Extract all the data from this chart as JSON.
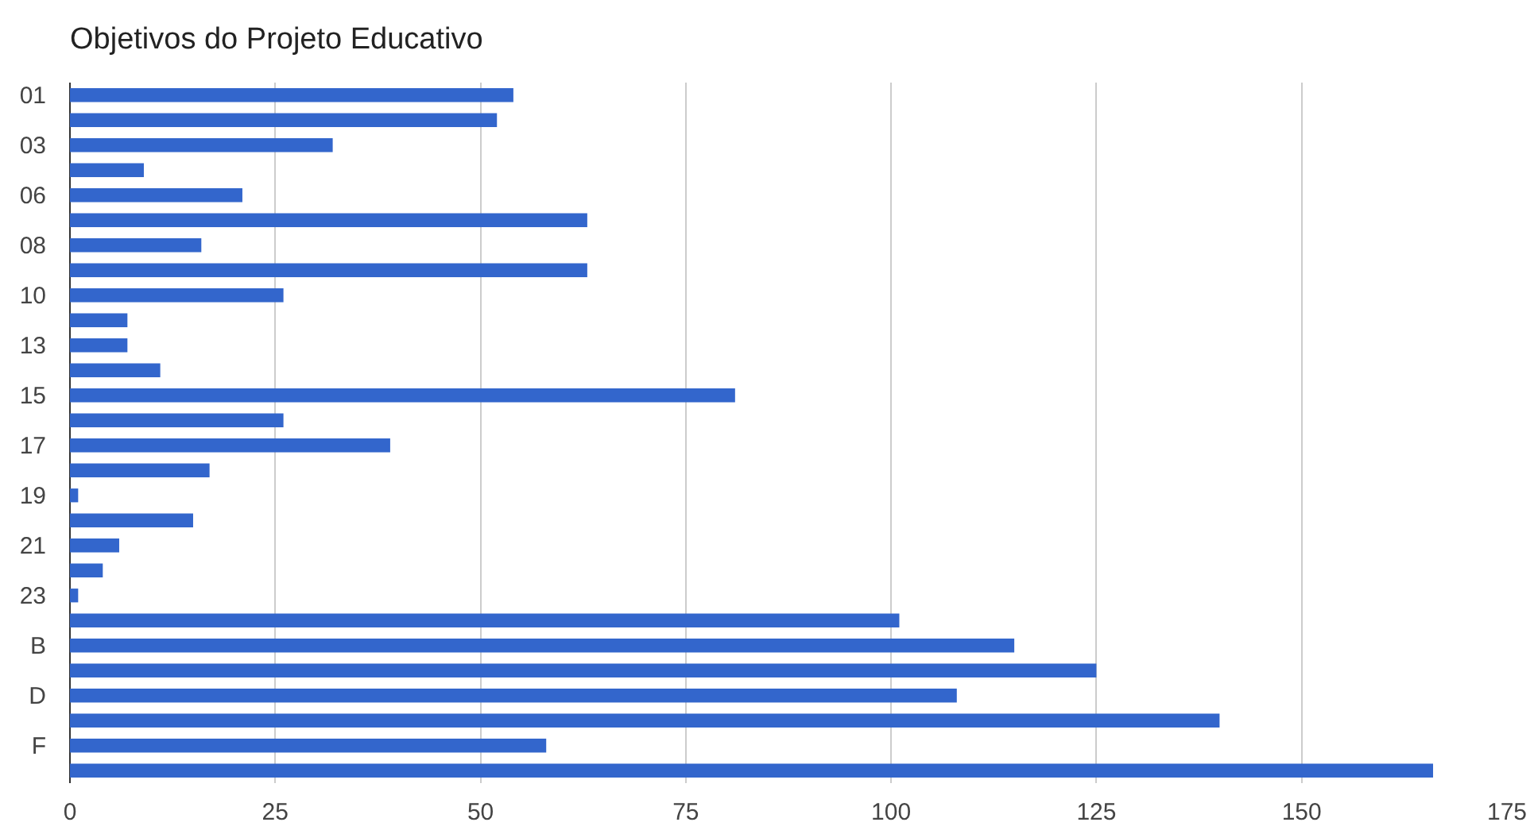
{
  "chart_data": {
    "type": "bar",
    "orientation": "horizontal",
    "title": "Objetivos do Projeto Educativo",
    "categories": [
      "01",
      null,
      "03",
      null,
      "06",
      null,
      "08",
      null,
      "10",
      null,
      "13",
      null,
      "15",
      null,
      "17",
      null,
      "19",
      null,
      "21",
      null,
      "23",
      null,
      "B",
      null,
      "D",
      null,
      "F",
      null
    ],
    "values": [
      54,
      52,
      32,
      9,
      21,
      63,
      16,
      63,
      26,
      7,
      7,
      11,
      81,
      26,
      39,
      17,
      1,
      15,
      6,
      4,
      1,
      101,
      115,
      125,
      108,
      140,
      58,
      166
    ],
    "color": "#3366cc",
    "xlim": [
      0,
      175
    ],
    "xticks": [
      0,
      25,
      50,
      75,
      100,
      125,
      150,
      175
    ],
    "grid": "x"
  }
}
